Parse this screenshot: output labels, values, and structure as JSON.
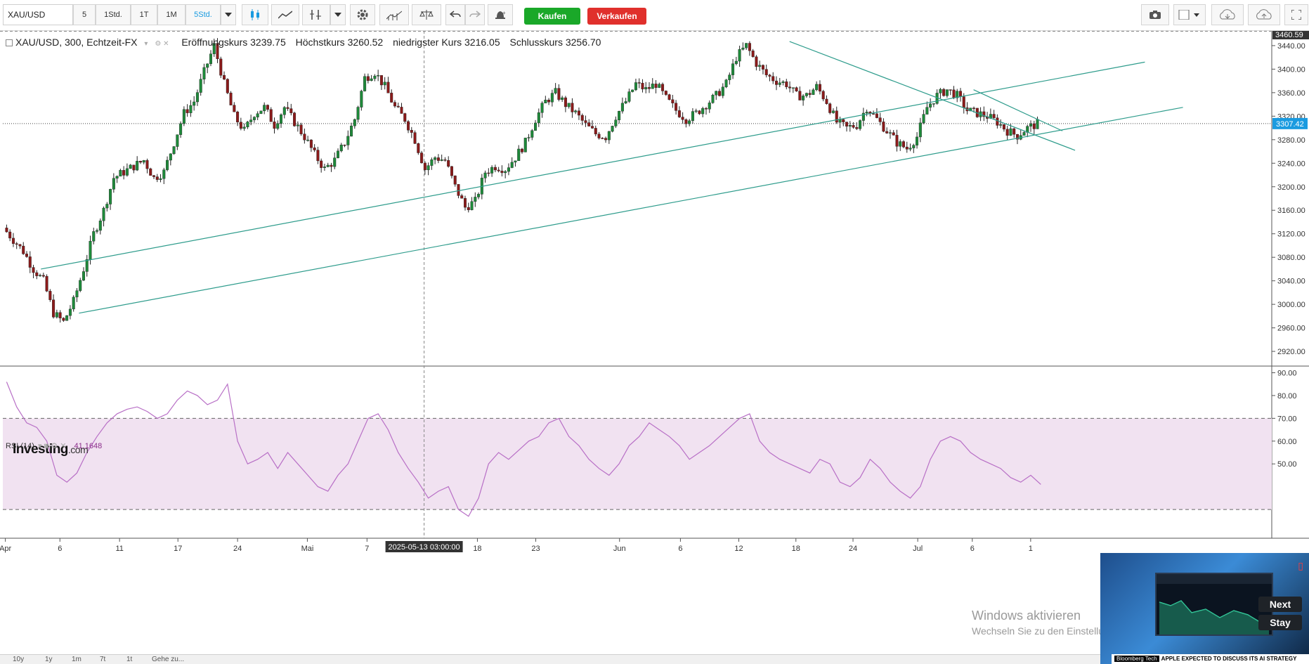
{
  "toolbar": {
    "symbol": "XAU/USD",
    "intervals": [
      "5",
      "1Std.",
      "1T",
      "1M",
      "5Std."
    ],
    "active_interval": "5Std.",
    "buy_label": "Kaufen",
    "sell_label": "Verkaufen",
    "colors": {
      "buy": "#1aa829",
      "sell": "#e0302c",
      "active": "#1a9be0"
    }
  },
  "legend": {
    "instrument": "XAU/USD, 300, Echtzeit-FX",
    "open_label": "Eröffnungskurs",
    "open_value": "3239.75",
    "high_label": "Höchstkurs",
    "high_value": "3260.52",
    "low_label": "niedrigster Kurs",
    "low_value": "3216.05",
    "close_label": "Schlusskurs",
    "close_value": "3256.70"
  },
  "rsi": {
    "label": "RSI (14)",
    "value": "41.1648",
    "overbought": 70,
    "oversold": 30
  },
  "logo": {
    "main": "Investing",
    "suffix": ".com"
  },
  "crosshair_date": "2025-05-13 03:00:00",
  "bottom_ranges": [
    "10y",
    "1y",
    "1m",
    "7t",
    "1t",
    "Gehe zu..."
  ],
  "watermark": {
    "title": "Windows aktivieren",
    "subtitle": "Wechseln Sie zu den Einstellungen, um Windows zu aktivieren."
  },
  "video": {
    "next": "Next",
    "stay": "Stay",
    "tag": "Bloomberg Tech",
    "headline": "APPLE EXPECTED TO DISCUSS ITS AI STRATEGY"
  },
  "chart_data": {
    "type": "candlestick",
    "price_axis": {
      "ticks": [
        3440,
        3400,
        3360,
        3320,
        3280,
        3240,
        3200,
        3160,
        3120,
        3080,
        3040,
        3000,
        2960,
        2920
      ],
      "ylim": [
        2895,
        3465
      ],
      "current_price": "3307.42",
      "top_price_label": "3460.59"
    },
    "rsi_axis": {
      "ticks": [
        90,
        80,
        70,
        60,
        50
      ],
      "ylim": [
        18,
        92
      ]
    },
    "x_labels": [
      "Apr",
      "6",
      "11",
      "17",
      "24",
      "Mai",
      "7",
      "18",
      "23",
      "Jun",
      "6",
      "12",
      "18",
      "24",
      "Jul",
      "6",
      "1"
    ],
    "close_path": [
      3130,
      3110,
      3090,
      3060,
      3040,
      2985,
      2970,
      3005,
      3060,
      3120,
      3160,
      3215,
      3225,
      3235,
      3245,
      3215,
      3225,
      3275,
      3325,
      3345,
      3395,
      3440,
      3375,
      3320,
      3295,
      3325,
      3335,
      3305,
      3335,
      3310,
      3285,
      3255,
      3230,
      3245,
      3275,
      3315,
      3385,
      3395,
      3370,
      3335,
      3315,
      3280,
      3230,
      3250,
      3245,
      3200,
      3165,
      3175,
      3225,
      3235,
      3230,
      3250,
      3275,
      3315,
      3345,
      3360,
      3340,
      3325,
      3305,
      3290,
      3285,
      3320,
      3345,
      3375,
      3365,
      3375,
      3350,
      3330,
      3315,
      3325,
      3340,
      3355,
      3375,
      3420,
      3440,
      3410,
      3390,
      3380,
      3375,
      3355,
      3355,
      3370,
      3345,
      3310,
      3300,
      3305,
      3335,
      3315,
      3295,
      3275,
      3265,
      3285,
      3335,
      3355,
      3365,
      3355,
      3330,
      3325,
      3320,
      3310,
      3295,
      3287,
      3300,
      3307
    ],
    "rsi_path": [
      86,
      75,
      68,
      66,
      60,
      45,
      42,
      46,
      55,
      62,
      68,
      72,
      74,
      75,
      73,
      70,
      72,
      78,
      82,
      80,
      76,
      78,
      85,
      60,
      50,
      52,
      55,
      48,
      55,
      50,
      45,
      40,
      38,
      45,
      50,
      60,
      70,
      72,
      65,
      55,
      48,
      42,
      35,
      38,
      40,
      30,
      27,
      35,
      50,
      55,
      52,
      56,
      60,
      62,
      68,
      70,
      62,
      58,
      52,
      48,
      45,
      50,
      58,
      62,
      68,
      65,
      62,
      58,
      52,
      55,
      58,
      62,
      66,
      70,
      72,
      60,
      55,
      52,
      50,
      48,
      46,
      52,
      50,
      42,
      40,
      44,
      52,
      48,
      42,
      38,
      35,
      40,
      52,
      60,
      62,
      60,
      55,
      52,
      50,
      48,
      44,
      42,
      45,
      41
    ],
    "trendlines": [
      {
        "from": [
          0.03,
          3060
        ],
        "to": [
          0.9,
          3412
        ]
      },
      {
        "from": [
          0.06,
          2985
        ],
        "to": [
          0.93,
          3335
        ]
      },
      {
        "from": [
          0.62,
          3447
        ],
        "to": [
          0.845,
          3262
        ]
      },
      {
        "from": [
          0.765,
          3365
        ],
        "to": [
          0.835,
          3295
        ]
      }
    ]
  }
}
